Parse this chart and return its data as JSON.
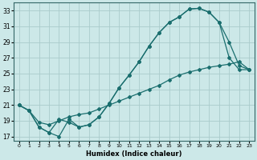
{
  "xlabel": "Humidex (Indice chaleur)",
  "bg_color": "#cce8e8",
  "grid_color": "#aacccc",
  "line_color": "#1a6e6e",
  "xlim": [
    -0.5,
    23.5
  ],
  "ylim": [
    16.5,
    34.0
  ],
  "yticks": [
    17,
    19,
    21,
    23,
    25,
    27,
    29,
    31,
    33
  ],
  "xticks": [
    0,
    1,
    2,
    3,
    4,
    5,
    6,
    7,
    8,
    9,
    10,
    11,
    12,
    13,
    14,
    15,
    16,
    17,
    18,
    19,
    20,
    21,
    22,
    23
  ],
  "line1_x": [
    0,
    1,
    2,
    3,
    4,
    5,
    6,
    7,
    8,
    9,
    10,
    11,
    12,
    13,
    14,
    15,
    16,
    17,
    18,
    19,
    20,
    21,
    22,
    23
  ],
  "line1_y": [
    21.0,
    20.3,
    18.2,
    17.5,
    19.2,
    18.8,
    18.2,
    18.5,
    19.5,
    21.2,
    23.2,
    24.8,
    26.5,
    28.5,
    30.2,
    31.5,
    32.2,
    33.2,
    33.3,
    32.8,
    31.5,
    29.0,
    26.0,
    25.5
  ],
  "line2_x": [
    0,
    1,
    2,
    3,
    4,
    5,
    6,
    7,
    8,
    9,
    10,
    11,
    12,
    13,
    14,
    15,
    16,
    17,
    18,
    19,
    20,
    21,
    22,
    23
  ],
  "line2_y": [
    21.0,
    20.3,
    18.2,
    17.5,
    17.0,
    19.2,
    18.2,
    18.5,
    19.5,
    21.2,
    23.2,
    24.8,
    26.5,
    28.5,
    30.2,
    31.5,
    32.2,
    33.2,
    33.3,
    32.8,
    31.5,
    27.0,
    25.5,
    25.5
  ],
  "line3_x": [
    0,
    1,
    2,
    3,
    4,
    5,
    6,
    7,
    8,
    9,
    10,
    11,
    12,
    13,
    14,
    15,
    16,
    17,
    18,
    19,
    20,
    21,
    22,
    23
  ],
  "line3_y": [
    21.0,
    20.3,
    18.8,
    18.5,
    19.0,
    19.5,
    19.8,
    20.0,
    20.5,
    21.0,
    21.5,
    22.0,
    22.5,
    23.0,
    23.5,
    24.2,
    24.8,
    25.2,
    25.5,
    25.8,
    26.0,
    26.2,
    26.5,
    25.5
  ]
}
